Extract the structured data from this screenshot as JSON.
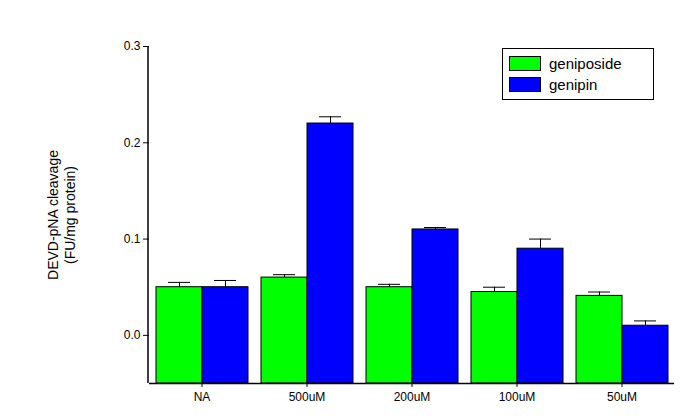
{
  "chart_data": {
    "type": "bar",
    "ylabel": "DEVD-pNA cleavage\n(FU/mg protein)",
    "categories": [
      "NA",
      "500uM",
      "200uM",
      "100uM",
      "50uM"
    ],
    "series": [
      {
        "name": "geniposide",
        "color": "#00ff00",
        "values": [
          0.05,
          0.06,
          0.05,
          0.045,
          0.041
        ],
        "errors": [
          0.005,
          0.003,
          0.003,
          0.005,
          0.004
        ]
      },
      {
        "name": "genipin",
        "color": "#0000ff",
        "values": [
          0.05,
          0.22,
          0.11,
          0.09,
          0.01
        ],
        "errors": [
          0.007,
          0.007,
          0.002,
          0.01,
          0.005
        ]
      }
    ],
    "ylim": [
      -0.05,
      0.3
    ],
    "yticks": [
      {
        "value": 0,
        "label": "0.0"
      },
      {
        "value": 0.1,
        "label": "0.1"
      },
      {
        "value": 0.2,
        "label": "0.2"
      },
      {
        "value": 0.3,
        "label": "0.3"
      }
    ],
    "grid": false,
    "legend": "top-right"
  }
}
